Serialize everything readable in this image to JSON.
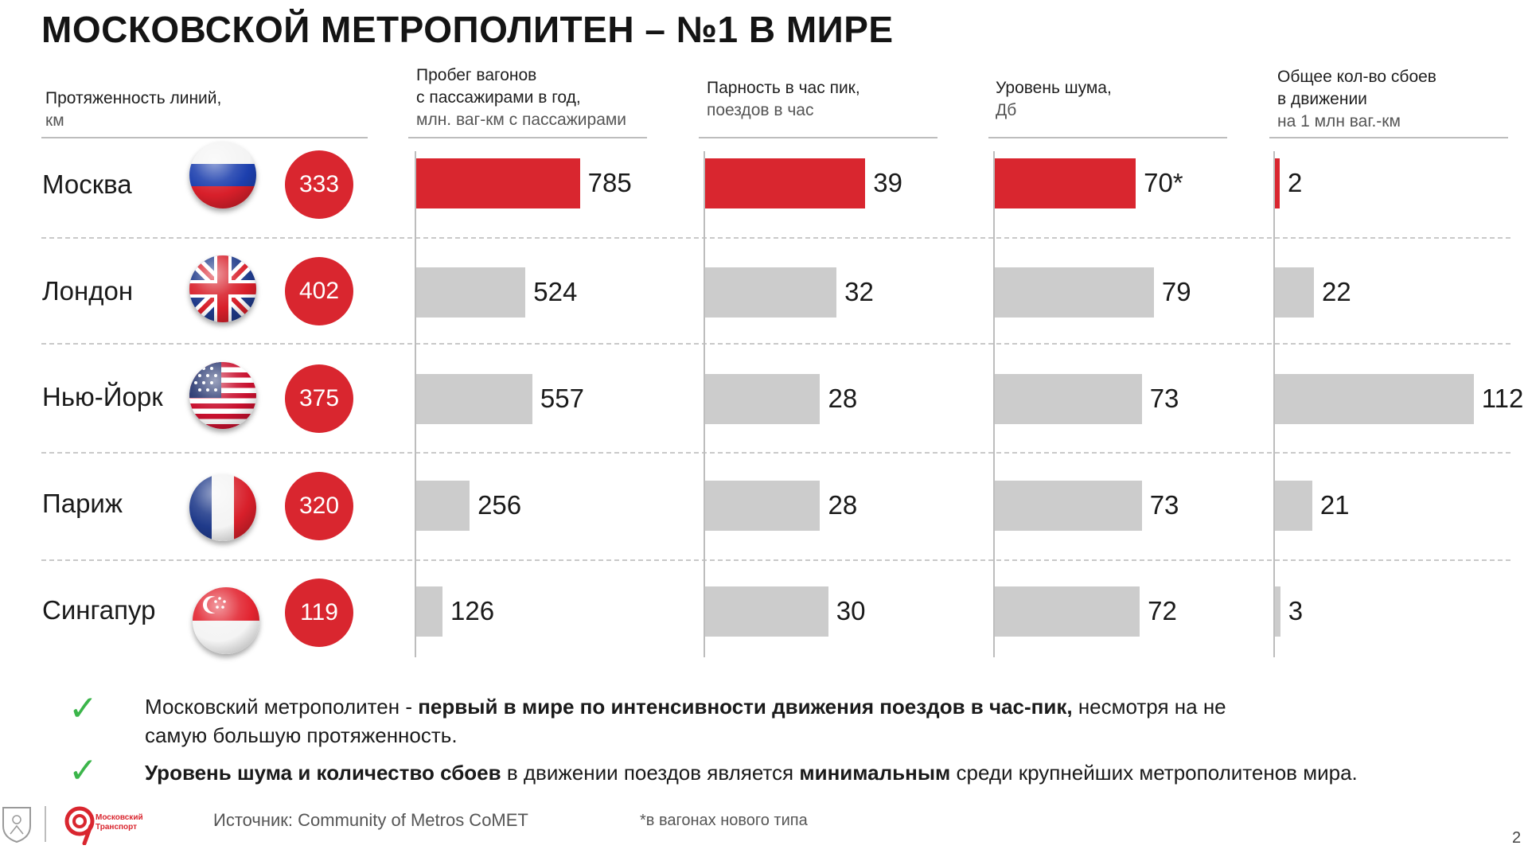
{
  "title": "МОСКОВСКОЙ МЕТРОПОЛИТЕН – №1 В МИРЕ",
  "columns": {
    "length": {
      "line1": "Протяженность линий,",
      "unit": "км"
    },
    "mileage": {
      "line1": "Пробег вагонов",
      "line2": "с пассажирами в год,",
      "unit": "млн. ваг-км с пассажирами"
    },
    "frequency": {
      "line1": "Парность в час пик,",
      "unit": "поездов в час"
    },
    "noise": {
      "line1": "Уровень шума,",
      "unit": "Дб"
    },
    "failures": {
      "line1": "Общее кол-во сбоев",
      "line2": "в движении",
      "unit": "на 1 млн ваг.-км"
    }
  },
  "rows": [
    {
      "city": "Москва",
      "flag": "flag-russia-icon",
      "length": "333"
    },
    {
      "city": "Лондон",
      "flag": "flag-uk-icon",
      "length": "402"
    },
    {
      "city": "Нью-Йорк",
      "flag": "flag-usa-icon",
      "length": "375"
    },
    {
      "city": "Париж",
      "flag": "flag-france-icon",
      "length": "320"
    },
    {
      "city": "Сингапур",
      "flag": "flag-singapore-icon",
      "length": "119"
    }
  ],
  "chart_data": [
    {
      "type": "bar",
      "categories": [
        "Москва",
        "Лондон",
        "Нью-Йорк",
        "Париж",
        "Сингапур"
      ],
      "values": [
        785,
        524,
        557,
        256,
        126
      ],
      "labels": [
        "785",
        "524",
        "557",
        "256",
        "126"
      ],
      "title": "Пробег вагонов с пассажирами в год",
      "ylabel": "млн. ваг-км с пассажирами",
      "highlight": "Москва"
    },
    {
      "type": "bar",
      "categories": [
        "Москва",
        "Лондон",
        "Нью-Йорк",
        "Париж",
        "Сингапур"
      ],
      "values": [
        39,
        32,
        28,
        28,
        30
      ],
      "labels": [
        "39",
        "32",
        "28",
        "28",
        "30"
      ],
      "title": "Парность в час пик",
      "ylabel": "поездов в час",
      "highlight": "Москва"
    },
    {
      "type": "bar",
      "categories": [
        "Москва",
        "Лондон",
        "Нью-Йорк",
        "Париж",
        "Сингапур"
      ],
      "values": [
        70,
        79,
        73,
        73,
        72
      ],
      "labels": [
        "70*",
        "79",
        "73",
        "73",
        "72"
      ],
      "title": "Уровень шума",
      "ylabel": "Дб",
      "highlight": "Москва"
    },
    {
      "type": "bar",
      "categories": [
        "Москва",
        "Лондон",
        "Нью-Йорк",
        "Париж",
        "Сингапур"
      ],
      "values": [
        2,
        22,
        112,
        21,
        3
      ],
      "labels": [
        "2",
        "22",
        "112",
        "21",
        "3"
      ],
      "title": "Общее кол-во сбоев в движении",
      "ylabel": "на 1 млн ваг.-км",
      "highlight": "Москва"
    }
  ],
  "notes": [
    {
      "check": "✓",
      "parts": [
        {
          "text": "Московский метрополитен - ",
          "bold": false
        },
        {
          "text": "первый в мире по интенсивности движения поездов в час-пик,",
          "bold": true
        },
        {
          "text": " несмотря на не самую большую протяженность.",
          "bold": false
        }
      ]
    },
    {
      "check": "✓",
      "parts": [
        {
          "text": "Уровень шума и количество сбоев",
          "bold": true
        },
        {
          "text": " в движении поездов является ",
          "bold": false
        },
        {
          "text": "минимальным",
          "bold": true
        },
        {
          "text": " среди крупнейших метрополитенов мира.",
          "bold": false
        }
      ]
    }
  ],
  "footer": {
    "logo_text": "Московский Транспорт",
    "source": "Источник: Community of Metros CoMET",
    "footnote": "*в вагонах нового типа",
    "page": "2"
  },
  "colors": {
    "accent": "#d9262f",
    "bar_gray": "#cccccc",
    "check": "#3bb54a"
  }
}
